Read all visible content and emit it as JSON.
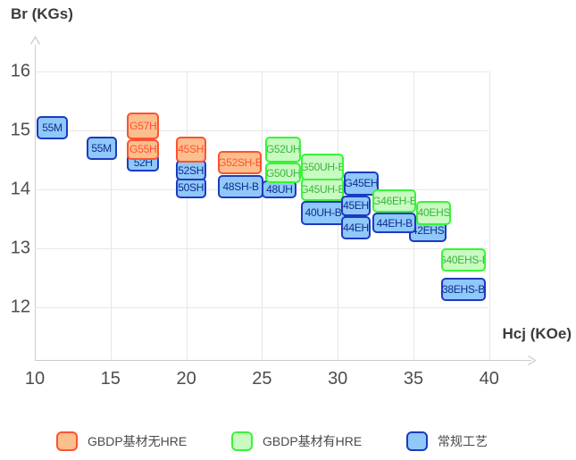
{
  "chart_data": {
    "type": "scatter",
    "title": "",
    "xlabel": "Hcj (KOe)",
    "ylabel": "Br (KGs)",
    "xlim": [
      10,
      43.5
    ],
    "ylim": [
      11.4,
      16.6
    ],
    "x_ticks": [
      10,
      15,
      20,
      25,
      30,
      35,
      40
    ],
    "y_ticks": [
      16,
      15,
      14,
      13,
      12
    ],
    "grid": true,
    "legend_position": "bottom",
    "boxes": [
      {
        "label": "55M",
        "series": "blue",
        "hcj": [
          10.1,
          12.2
        ],
        "br": [
          14.85,
          15.25
        ]
      },
      {
        "label": "55M",
        "series": "blue",
        "hcj": [
          13.4,
          15.4
        ],
        "br": [
          14.5,
          14.9
        ]
      },
      {
        "label": "52H",
        "series": "blue",
        "hcj": [
          16.1,
          18.2
        ],
        "br": [
          14.3,
          14.6
        ]
      },
      {
        "label": "G55H",
        "series": "orange",
        "hcj": [
          16.1,
          18.2
        ],
        "br": [
          14.5,
          14.85
        ]
      },
      {
        "label": "G57H",
        "series": "orange",
        "hcj": [
          16.1,
          18.2
        ],
        "br": [
          14.85,
          15.3
        ]
      },
      {
        "label": "50SH",
        "series": "blue",
        "hcj": [
          19.3,
          21.3
        ],
        "br": [
          13.85,
          14.2
        ]
      },
      {
        "label": "52SH",
        "series": "blue",
        "hcj": [
          19.3,
          21.3
        ],
        "br": [
          14.15,
          14.5
        ]
      },
      {
        "label": "45SH",
        "series": "orange",
        "hcj": [
          19.3,
          21.3
        ],
        "br": [
          14.45,
          14.9
        ]
      },
      {
        "label": "48SH-B",
        "series": "blue",
        "hcj": [
          22.1,
          25.1
        ],
        "br": [
          13.85,
          14.25
        ]
      },
      {
        "label": "G52SH-B",
        "series": "orange",
        "hcj": [
          22.1,
          25.0
        ],
        "br": [
          14.25,
          14.65
        ]
      },
      {
        "label": "48UH",
        "series": "blue",
        "hcj": [
          25.0,
          27.3
        ],
        "br": [
          13.85,
          14.15
        ]
      },
      {
        "label": "G50UH",
        "series": "green",
        "hcj": [
          25.2,
          27.6
        ],
        "br": [
          14.1,
          14.45
        ]
      },
      {
        "label": "G52UH",
        "series": "green",
        "hcj": [
          25.2,
          27.6
        ],
        "br": [
          14.45,
          14.9
        ]
      },
      {
        "label": "40UH-B",
        "series": "blue",
        "hcj": [
          27.6,
          30.5
        ],
        "br": [
          13.4,
          13.8
        ]
      },
      {
        "label": "G45UH-B",
        "series": "green",
        "hcj": [
          27.6,
          30.4
        ],
        "br": [
          13.8,
          14.2
        ]
      },
      {
        "label": "G50UH-B",
        "series": "green",
        "hcj": [
          27.6,
          30.4
        ],
        "br": [
          14.15,
          14.6
        ]
      },
      {
        "label": "44EH",
        "series": "blue",
        "hcj": [
          30.2,
          32.2
        ],
        "br": [
          13.15,
          13.55
        ]
      },
      {
        "label": "45EH",
        "series": "blue",
        "hcj": [
          30.2,
          32.2
        ],
        "br": [
          13.55,
          13.9
        ]
      },
      {
        "label": "G45EH",
        "series": "blue",
        "hcj": [
          30.4,
          32.7
        ],
        "br": [
          13.9,
          14.3
        ]
      },
      {
        "label": "42EHS",
        "series": "blue",
        "hcj": [
          34.7,
          37.2
        ],
        "br": [
          13.1,
          13.5
        ]
      },
      {
        "label": "44EH-B",
        "series": "blue",
        "hcj": [
          32.3,
          35.2
        ],
        "br": [
          13.25,
          13.6
        ]
      },
      {
        "label": "G46EH-B",
        "series": "green",
        "hcj": [
          32.3,
          35.2
        ],
        "br": [
          13.6,
          14.0
        ]
      },
      {
        "label": "40EHS",
        "series": "green",
        "hcj": [
          35.2,
          37.5
        ],
        "br": [
          13.4,
          13.8
        ]
      },
      {
        "label": "38EHS-B",
        "series": "blue",
        "hcj": [
          36.8,
          39.8
        ],
        "br": [
          12.1,
          12.5
        ]
      },
      {
        "label": "G40EHS-B",
        "series": "green",
        "hcj": [
          36.8,
          39.8
        ],
        "br": [
          12.6,
          13.0
        ]
      }
    ]
  },
  "legend": [
    {
      "label": "GBDP基材无HRE",
      "series": "orange"
    },
    {
      "label": "GBDP基材有HRE",
      "series": "green"
    },
    {
      "label": "常规工艺",
      "series": "blue"
    }
  ],
  "colors": {
    "orange": {
      "fill": "#fbbf8e",
      "border": "#ff5130",
      "text": "#ff5130"
    },
    "green": {
      "fill": "#c8fac2",
      "border": "#38f438",
      "text": "#3bb53b"
    },
    "blue": {
      "fill": "#8fc8f9",
      "border": "#1d3ac0",
      "text": "#112c8e"
    }
  },
  "axis_style": {
    "grid_color": "#e7e7e7",
    "axis_color": "#cccccc",
    "tick_color": "#4d4d4d",
    "title_color": "#3b3b3b"
  }
}
